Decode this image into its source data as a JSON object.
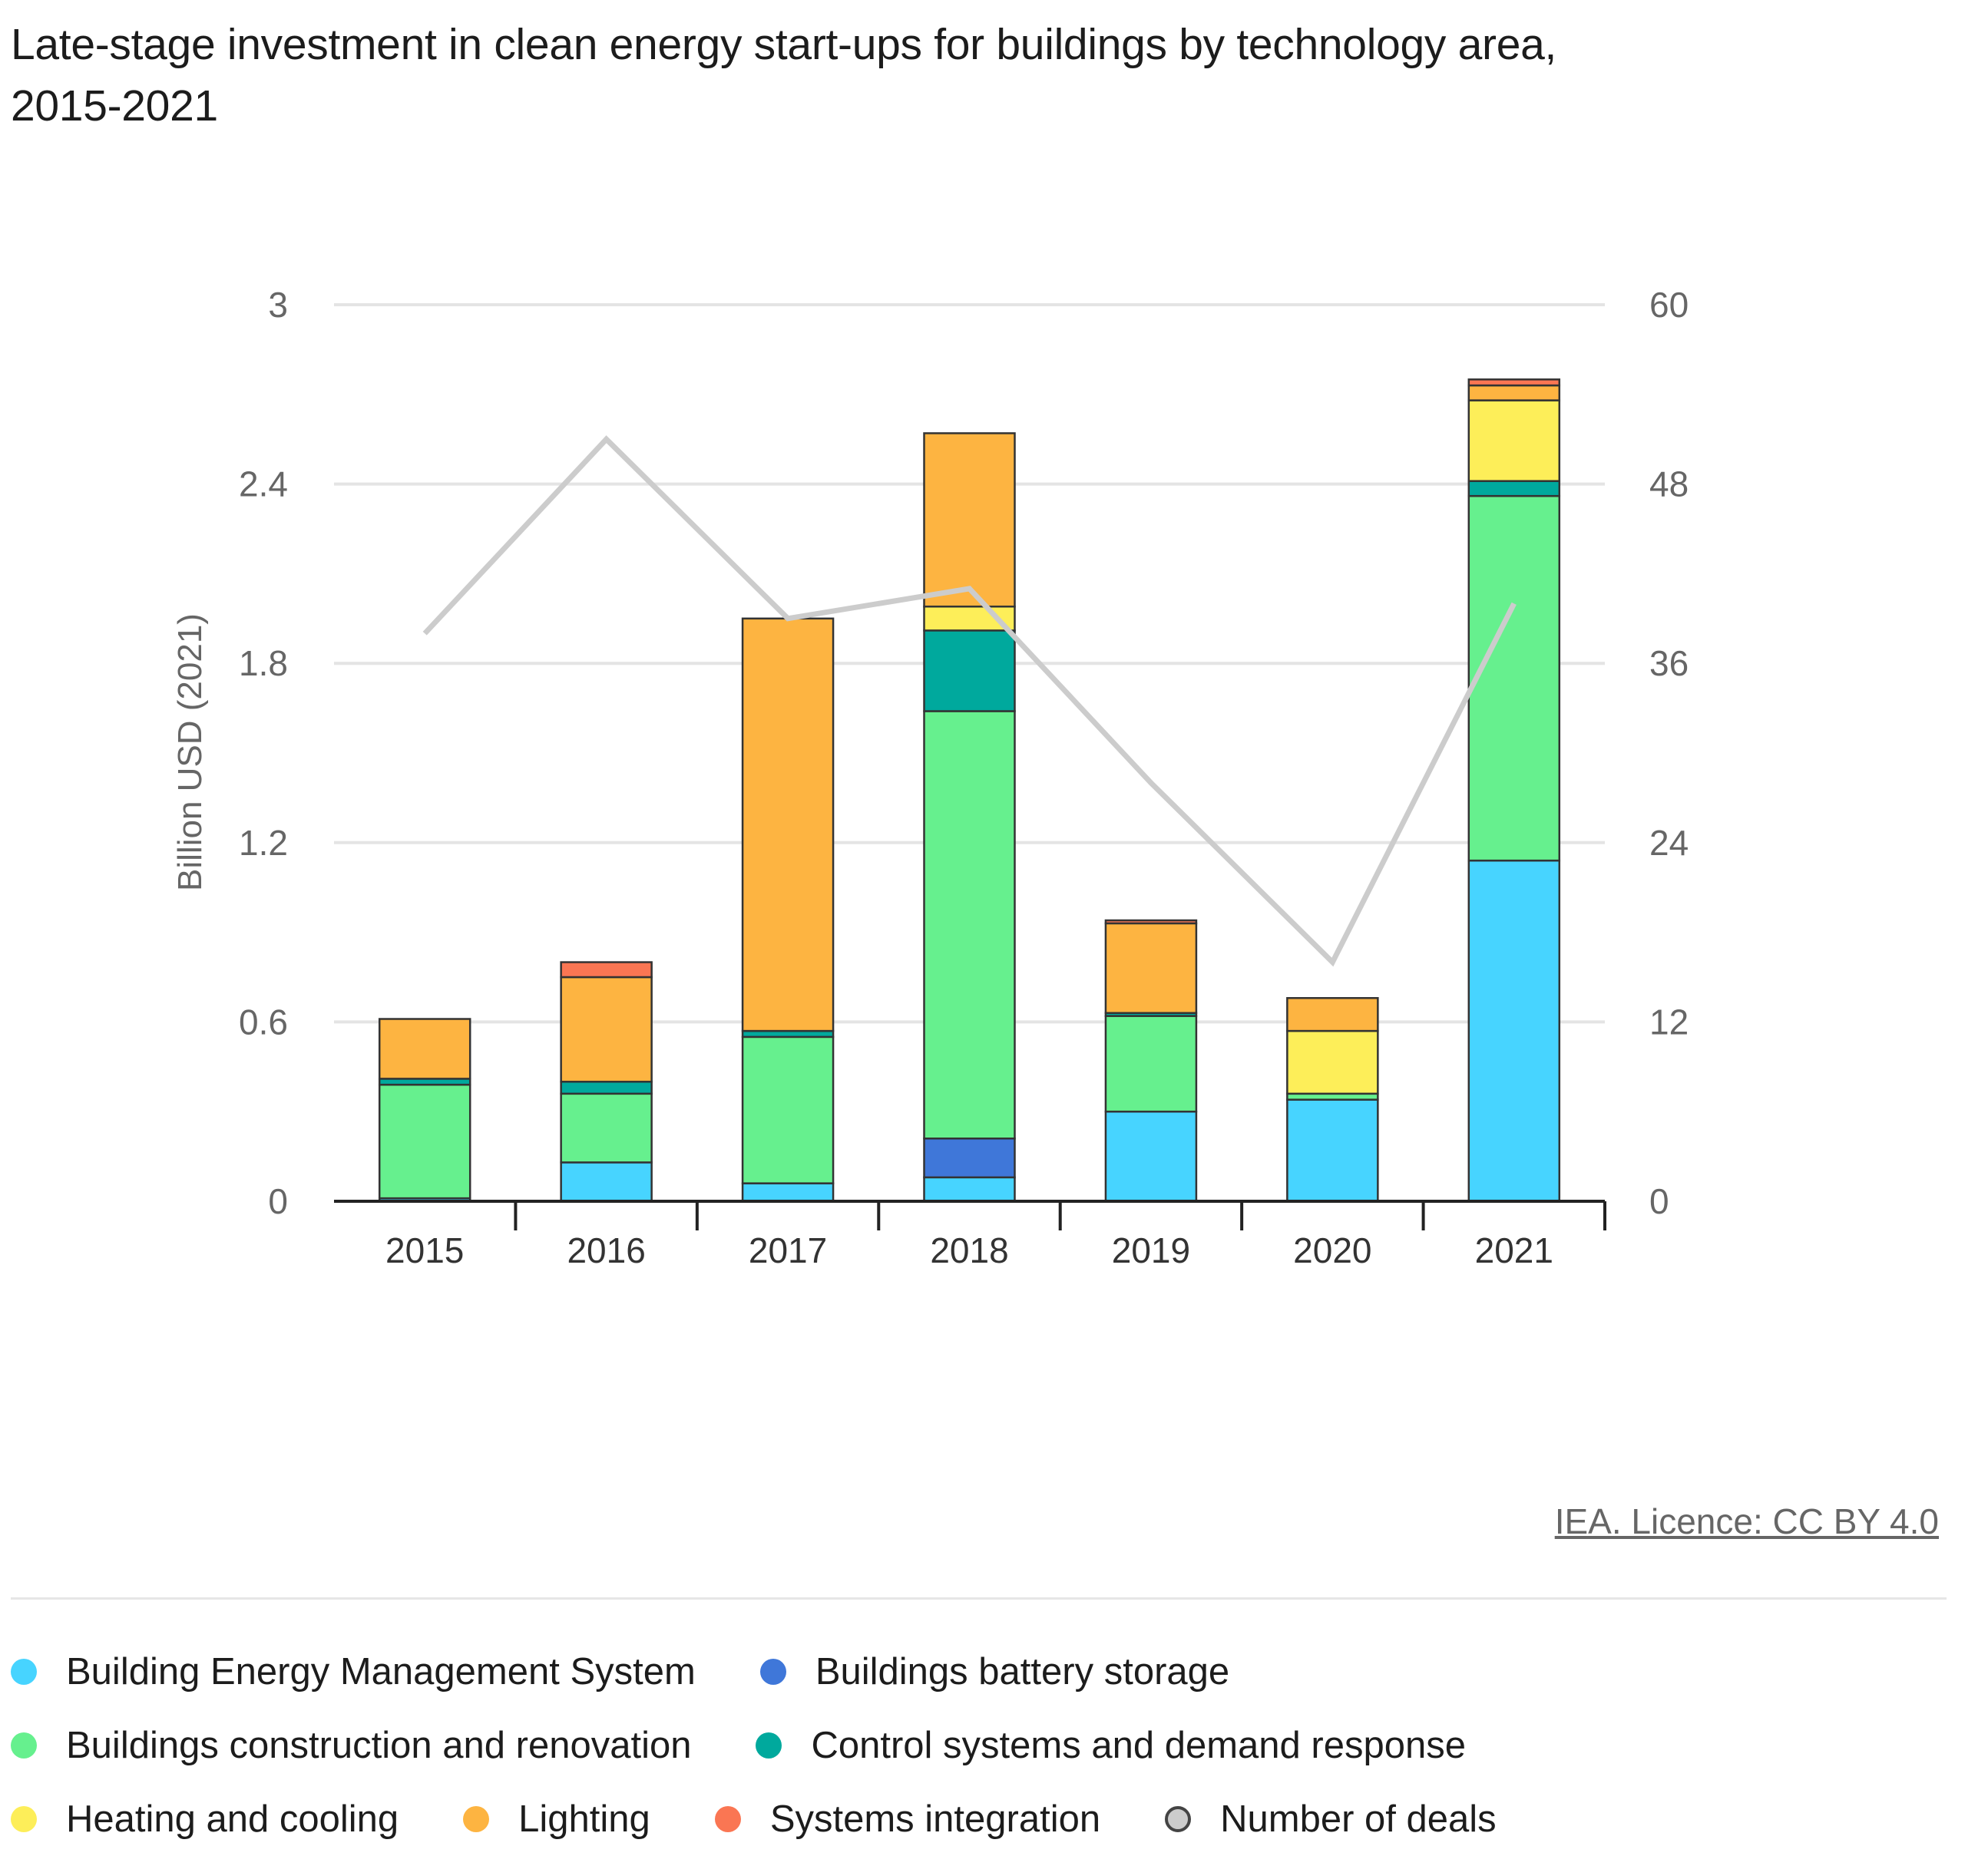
{
  "chart_data": {
    "type": "bar",
    "title": "Late-stage investment in clean energy start-ups for buildings by technology area, 2015-2021",
    "ylabel": "Billion USD (2021)",
    "y2label": "",
    "ylim": [
      0,
      3
    ],
    "y2lim": [
      0,
      60
    ],
    "yticks": [
      "0",
      "0.6",
      "1.2",
      "1.8",
      "2.4",
      "3"
    ],
    "y2ticks": [
      "0",
      "12",
      "24",
      "36",
      "48",
      "60"
    ],
    "categories": [
      "2015",
      "2016",
      "2017",
      "2018",
      "2019",
      "2020",
      "2021"
    ],
    "stacked": true,
    "grid": true,
    "legend_position": "bottom",
    "series": [
      {
        "name": "Building Energy Management System",
        "color": "#47d4ff",
        "values": [
          0.01,
          0.13,
          0.06,
          0.08,
          0.3,
          0.34,
          1.14
        ]
      },
      {
        "name": "Buildings battery storage",
        "color": "#3f77d9",
        "values": [
          0,
          0,
          0,
          0.13,
          0,
          0,
          0
        ]
      },
      {
        "name": "Buildings construction and renovation",
        "color": "#66f08e",
        "values": [
          0.38,
          0.23,
          0.49,
          1.43,
          0.32,
          0.02,
          1.22
        ]
      },
      {
        "name": "Control systems and demand response",
        "color": "#00a99d",
        "values": [
          0.02,
          0.04,
          0.02,
          0.27,
          0.01,
          0,
          0.05
        ]
      },
      {
        "name": "Heating and cooling",
        "color": "#fdee59",
        "values": [
          0,
          0,
          0,
          0.08,
          0,
          0.21,
          0.27
        ]
      },
      {
        "name": "Lighting",
        "color": "#fdb441",
        "values": [
          0.2,
          0.35,
          1.38,
          0.58,
          0.3,
          0.11,
          0.05
        ]
      },
      {
        "name": "Systems integration",
        "color": "#fa7653",
        "values": [
          0,
          0.05,
          0,
          0,
          0.01,
          0,
          0.02
        ]
      }
    ],
    "line_series": {
      "name": "Number of deals",
      "color": "#cccccc",
      "axis": "right",
      "values": [
        38,
        51,
        39,
        41,
        28,
        16,
        40
      ]
    }
  },
  "source": "IEA. Licence: CC BY 4.0",
  "legend_rows": [
    [
      0,
      1
    ],
    [
      2,
      3
    ],
    [
      4,
      5,
      6,
      7
    ]
  ]
}
